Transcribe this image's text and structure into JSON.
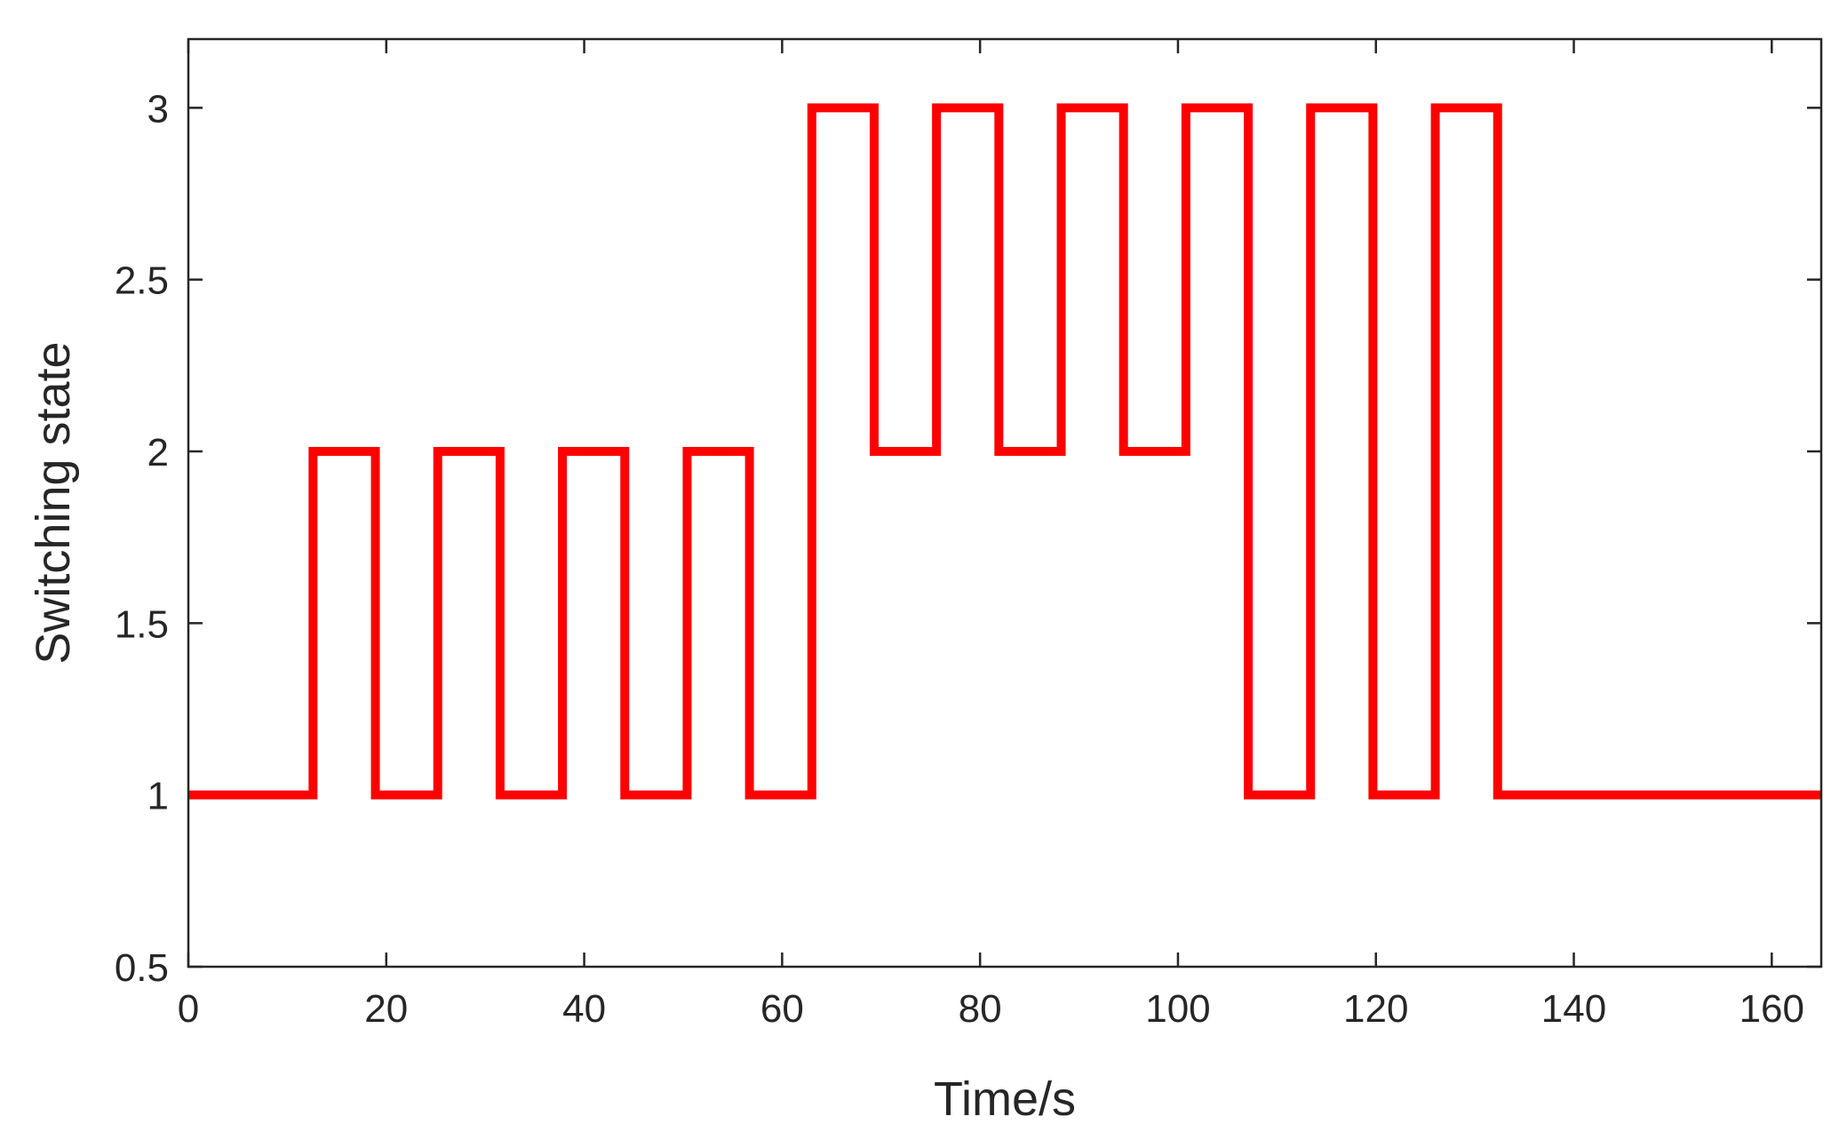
{
  "chart_data": {
    "type": "line",
    "step": true,
    "title": "",
    "xlabel": "Time/s",
    "ylabel": "Switching state",
    "xlim": [
      0,
      165
    ],
    "ylim": [
      0.5,
      3.2
    ],
    "xticks": [
      0,
      20,
      40,
      60,
      80,
      100,
      120,
      140,
      160
    ],
    "xtick_labels": [
      "0",
      "20",
      "40",
      "60",
      "80",
      "100",
      "120",
      "140",
      "160"
    ],
    "yticks": [
      0.5,
      1,
      1.5,
      2,
      2.5,
      3
    ],
    "ytick_labels": [
      "0.5",
      "1",
      "1.5",
      "2",
      "2.5",
      "3"
    ],
    "grid": false,
    "series": [
      {
        "color": "#ff0000",
        "x": [
          0,
          12.6,
          18.9,
          25.2,
          31.5,
          37.8,
          44.1,
          50.4,
          56.7,
          63.0,
          69.3,
          75.6,
          81.9,
          88.2,
          94.5,
          100.8,
          107.1,
          113.4,
          119.7,
          126.0,
          132.3,
          165
        ],
        "y": [
          1,
          2,
          1,
          2,
          1,
          2,
          1,
          2,
          1,
          3,
          2,
          3,
          2,
          3,
          2,
          3,
          1,
          3,
          1,
          3,
          1,
          1
        ]
      }
    ]
  }
}
